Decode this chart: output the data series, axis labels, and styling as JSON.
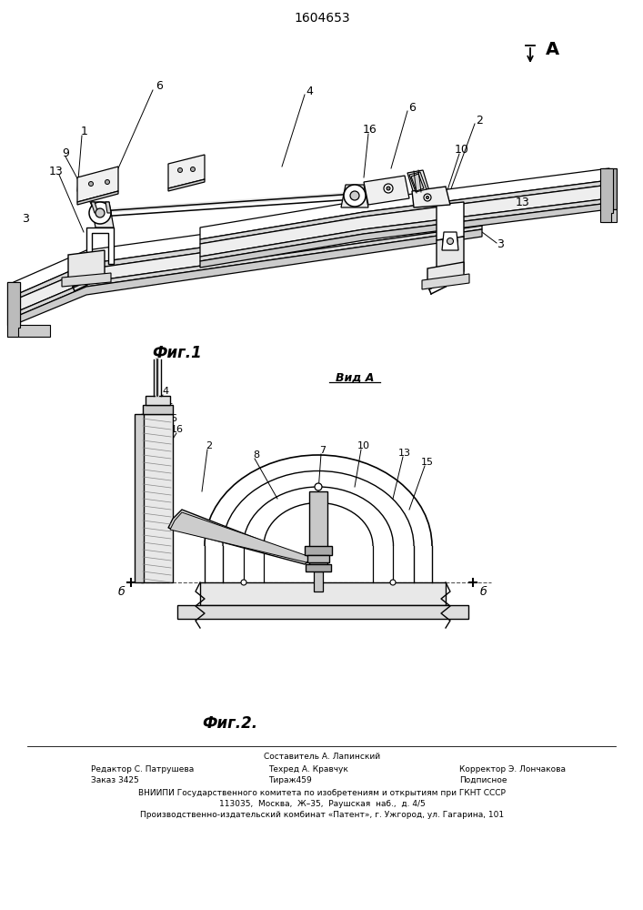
{
  "patent_number": "1604653",
  "fig1_caption": "Фиг.1",
  "fig2_caption": "Фиг.2.",
  "view_label": "Вид А",
  "arrow_label": "А",
  "editor_line": "Редактор С. Патрушева",
  "order_line": "Заказ 3425",
  "compiler_line": "Составитель А. Лапинский",
  "tech_line": "Техред А. Кравчук",
  "circulation_line": "Тираж459",
  "corrector_line": "Корректор Э. Лончакова",
  "podpisnoe": "Подписное",
  "vniip_line1": "ВНИИПИ Государственного комитета по изобретениям и открытиям при ГКНТ СССР",
  "vniip_line2": "113035,  Москва,  Ж–35,  Раушская  наб.,  д. 4/5",
  "vniip_line3": "Производственно-издательский комбинат «Патент», г. Ужгород, ул. Гагарина, 101",
  "bg_color": "#ffffff",
  "line_color": "#000000"
}
